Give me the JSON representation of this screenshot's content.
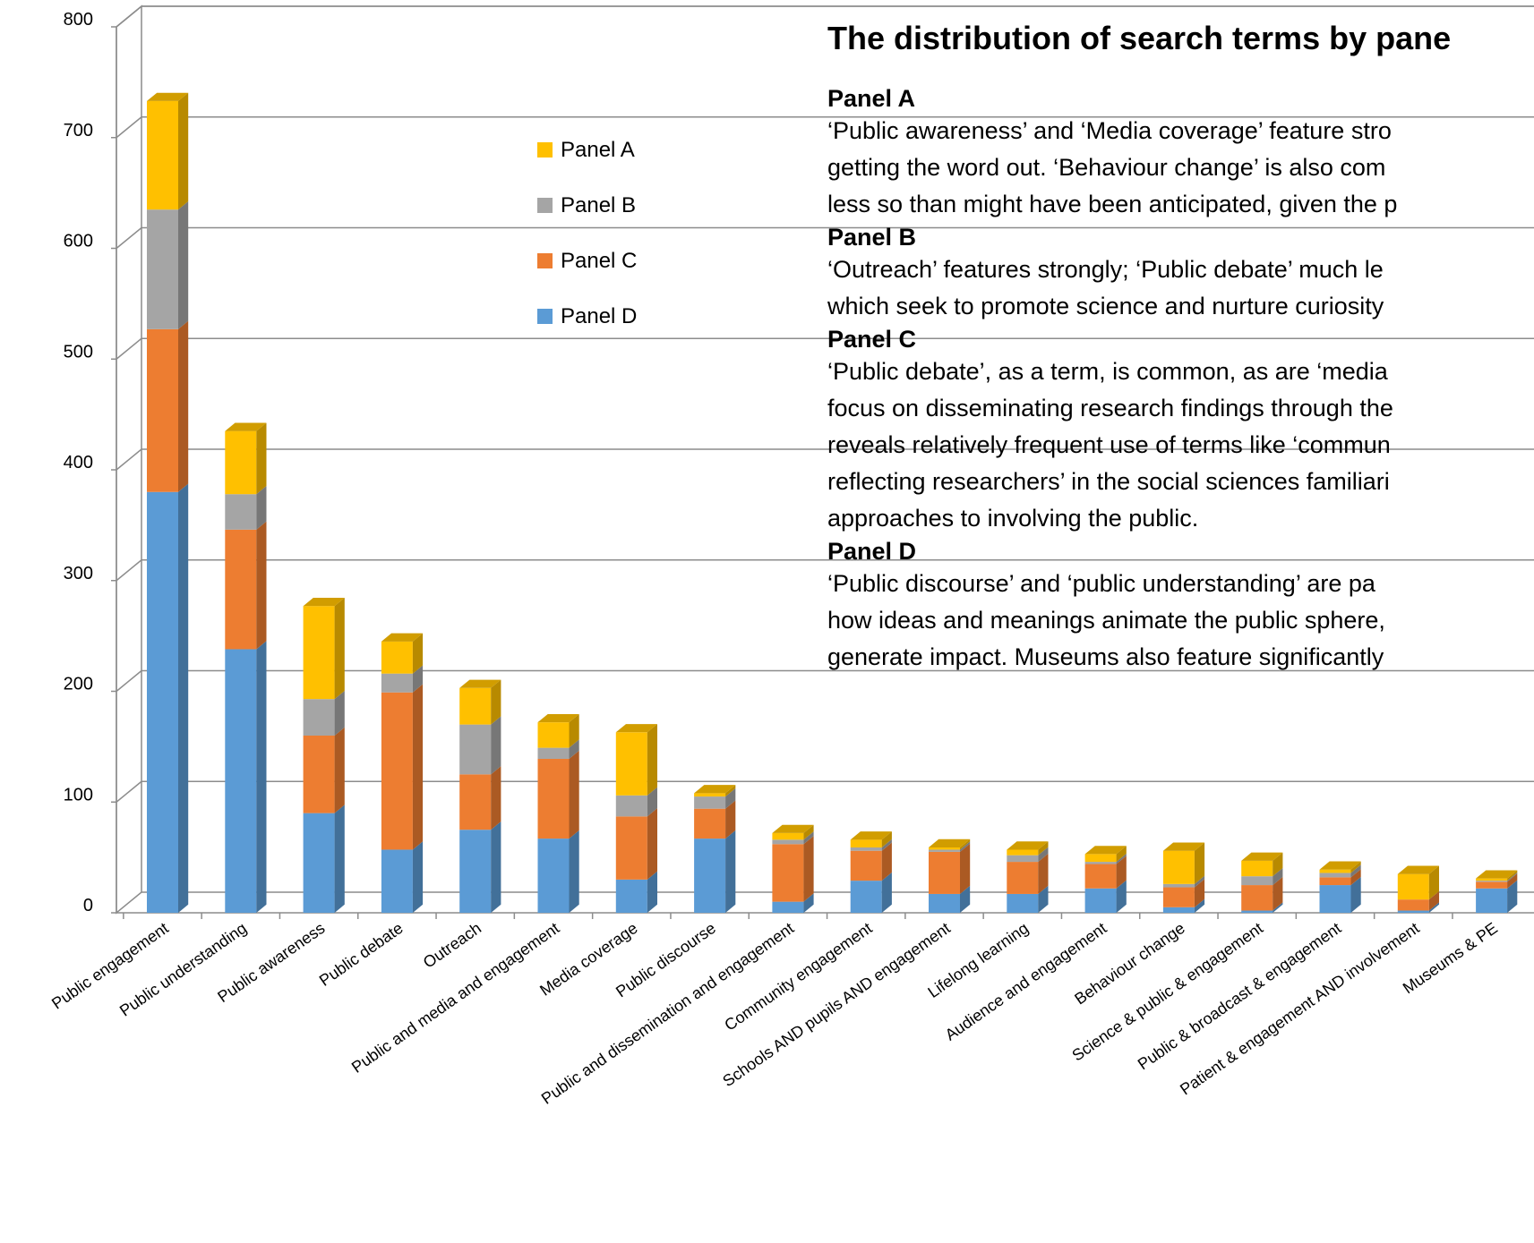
{
  "chart_data": {
    "type": "bar",
    "stacked": true,
    "style": "3d-stacked-column",
    "categories": [
      "Public engagement",
      "Public understanding",
      "Public awareness",
      "Public debate",
      "Outreach",
      "Public and media and engagement",
      "Media coverage",
      "Public discourse",
      "Public and dissemination and engagement",
      "Community engagement",
      "Schools AND pupils AND engagement",
      "Lifelong learning",
      "Audience and engagement",
      "Behaviour change",
      "Science & public & engagement",
      "Public & broadcast & engagement",
      "Patient & engagement AND involvement",
      "Museums & PE"
    ],
    "series": [
      {
        "name": "Panel D",
        "color": "#5B9BD5",
        "values": [
          380,
          238,
          90,
          57,
          75,
          67,
          30,
          67,
          10,
          29,
          17,
          17,
          22,
          5,
          2,
          25,
          2,
          22
        ]
      },
      {
        "name": "Panel C",
        "color": "#ED7D31",
        "values": [
          147,
          108,
          70,
          142,
          50,
          72,
          57,
          27,
          52,
          27,
          38,
          29,
          22,
          18,
          23,
          7,
          10,
          6
        ]
      },
      {
        "name": "Panel B",
        "color": "#A5A5A5",
        "values": [
          108,
          32,
          33,
          17,
          45,
          10,
          19,
          11,
          4,
          3,
          2,
          6,
          2,
          3,
          8,
          4,
          0,
          1
        ]
      },
      {
        "name": "Panel A",
        "color": "#FFC000",
        "values": [
          98,
          57,
          84,
          29,
          33,
          23,
          57,
          3,
          6,
          7,
          2,
          5,
          7,
          30,
          14,
          3,
          23,
          2
        ]
      }
    ],
    "legend_order": [
      "Panel A",
      "Panel B",
      "Panel C",
      "Panel D"
    ],
    "legend_position": "inside-left-top",
    "y_ticks": [
      "0",
      "100",
      "200",
      "300",
      "400",
      "500",
      "600",
      "700",
      "800"
    ],
    "ylim": [
      0,
      800
    ],
    "grid": true,
    "title": "",
    "xlabel": "",
    "ylabel": ""
  },
  "text_panel": {
    "title": "The distribution of search terms by pane",
    "sections": [
      {
        "heading": "Panel A",
        "lines": [
          "‘Public awareness’ and ‘Media coverage’ feature stro",
          "getting the word out.  ‘Behaviour change’ is also com",
          "less so than might have been anticipated, given the p"
        ]
      },
      {
        "heading": "Panel B",
        "lines": [
          "‘Outreach’ features strongly; ‘Public debate’ much le",
          "which seek to promote science and nurture curiosity"
        ]
      },
      {
        "heading": "Panel C",
        "lines": [
          "‘Public debate’, as a term, is common, as are ‘media",
          "focus on disseminating research findings through the",
          "reveals relatively frequent use of terms like ‘commun",
          "reflecting researchers’ in the social sciences familiari",
          "approaches to involving the public."
        ]
      },
      {
        "heading": "Panel D",
        "lines": [
          "‘Public discourse’ and ‘public understanding’ are  pa",
          "how ideas and meanings animate the public sphere,",
          "generate impact.  Museums also feature significantly"
        ]
      }
    ]
  }
}
